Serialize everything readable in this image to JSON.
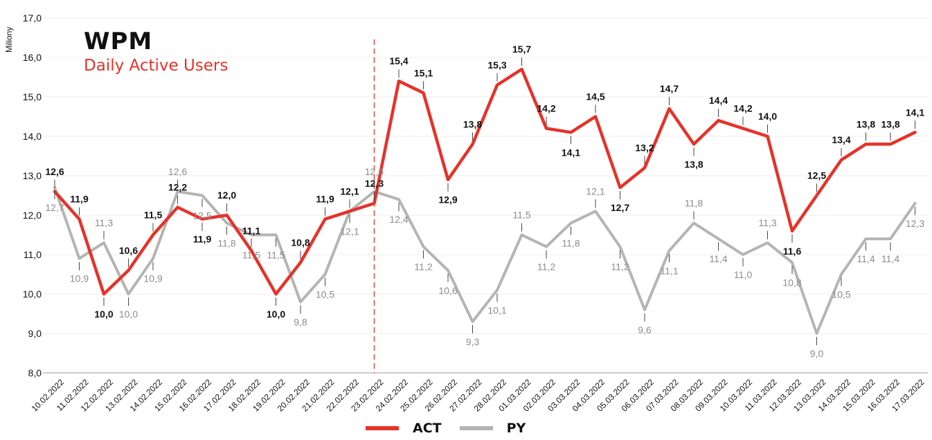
{
  "header": {
    "title": "WPM",
    "subtitle": "Daily Active Users"
  },
  "colors": {
    "act": "#e63229",
    "py": "#b4b4b4",
    "grid": "#ececec",
    "axis": "#999999",
    "text": "#111111",
    "divider": "#e0453c"
  },
  "chart_data": {
    "type": "line",
    "title": "WPM",
    "subtitle": "Daily Active Users",
    "xlabel": "",
    "ylabel": "Miliony",
    "ylim": [
      8.0,
      17.0
    ],
    "yticks": [
      "8,0",
      "9,0",
      "10,0",
      "11,0",
      "12,0",
      "13,0",
      "14,0",
      "15,0",
      "16,0",
      "17,0"
    ],
    "divider_after": "23.02.2022",
    "categories": [
      "10.02.2022",
      "11.02.2022",
      "12.02.2022",
      "13.02.2022",
      "14.02.2022",
      "15.02.2022",
      "16.02.2022",
      "17.02.2022",
      "18.02.2022",
      "19.02.2022",
      "20.02.2022",
      "21.02.2022",
      "22.02.2022",
      "23.02.2022",
      "24.02.2022",
      "25.02.2022",
      "26.02.2022",
      "27.02.2022",
      "28.02.2022",
      "01.03.2022",
      "02.03.2022",
      "03.03.2022",
      "04.03.2022",
      "05.03.2022",
      "06.03.2022",
      "07.03.2022",
      "08.03.2022",
      "09.03.2022",
      "10.03.2022",
      "11.03.2022",
      "12.03.2022",
      "13.03.2022",
      "14.03.2022",
      "15.03.2022",
      "16.03.2022",
      "17.03.2022"
    ],
    "series": [
      {
        "name": "ACT",
        "values": [
          12.6,
          11.9,
          10.0,
          10.6,
          11.5,
          12.2,
          11.9,
          12.0,
          11.1,
          10.0,
          10.8,
          11.9,
          12.1,
          12.3,
          15.4,
          15.1,
          12.9,
          13.8,
          15.3,
          15.7,
          14.2,
          14.1,
          14.5,
          12.7,
          13.2,
          14.7,
          13.8,
          14.4,
          14.2,
          14.0,
          11.6,
          12.5,
          13.4,
          13.8,
          13.8,
          14.1
        ],
        "labels": [
          "12,6",
          "11,9",
          "10,0",
          "10,6",
          "11,5",
          "12,2",
          "11,9",
          "12,0",
          "11,1",
          "10,0",
          "10,8",
          "11,9",
          "12,1",
          "12,3",
          "15,4",
          "15,1",
          "12,9",
          "13,8",
          "15,3",
          "15,7",
          "14,2",
          "14,1",
          "14,5",
          "12,7",
          "13,2",
          "14,7",
          "13,8",
          "14,4",
          "14,2",
          "14,0",
          "11,6",
          "12,5",
          "13,4",
          "13,8",
          "13,8",
          "14,1"
        ]
      },
      {
        "name": "PY",
        "values": [
          12.7,
          10.9,
          11.3,
          10.0,
          10.9,
          12.6,
          12.5,
          11.8,
          11.5,
          11.5,
          9.8,
          10.5,
          12.1,
          12.6,
          12.4,
          11.2,
          10.6,
          9.3,
          10.1,
          11.5,
          11.2,
          11.8,
          12.1,
          11.2,
          9.6,
          11.1,
          11.8,
          11.4,
          11.0,
          11.3,
          10.8,
          9.0,
          10.5,
          11.4,
          11.4,
          12.3
        ],
        "labels": [
          "12,7",
          "10,9",
          "11,3",
          "10,0",
          "10,9",
          "12,6",
          "12,5",
          "11,8",
          "11,5",
          "11,5",
          "9,8",
          "10,5",
          "12,1",
          "12,6",
          "12,4",
          "11,2",
          "10,6",
          "9,3",
          "10,1",
          "11,5",
          "11,2",
          "11,8",
          "12,1",
          "11,2",
          "9,6",
          "11,1",
          "11,8",
          "11,4",
          "11,0",
          "11,3",
          "10,8",
          "9,0",
          "10,5",
          "11,4",
          "11,4",
          "12,3"
        ]
      }
    ],
    "legend": [
      "ACT",
      "PY"
    ],
    "legend_position": "bottom-center"
  }
}
